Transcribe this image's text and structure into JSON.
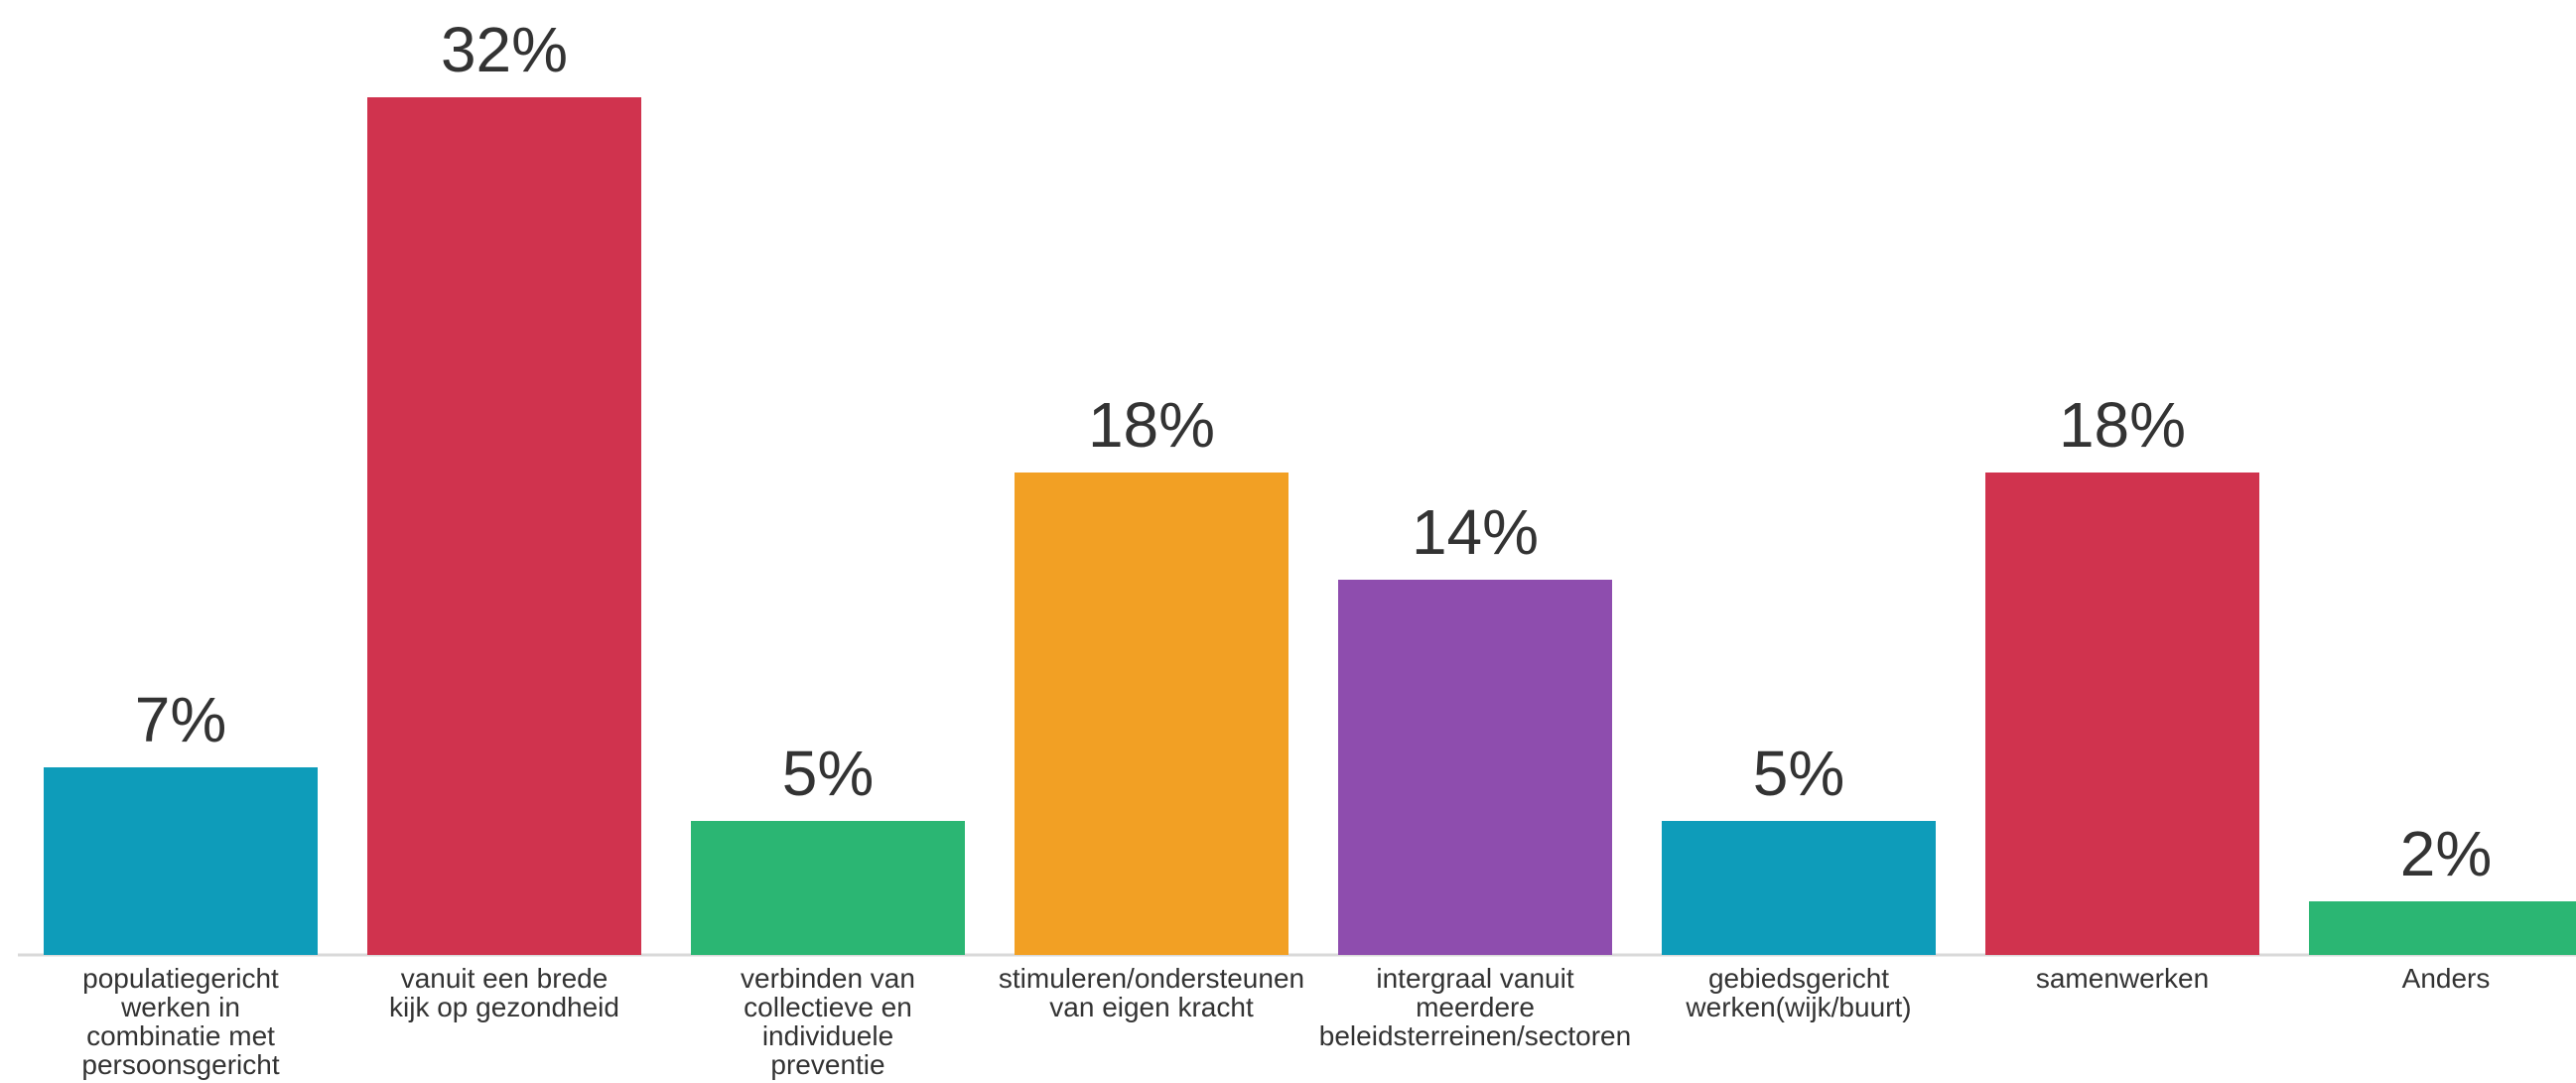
{
  "chart_data": {
    "type": "bar",
    "categories": [
      [
        "populatiegericht",
        "werken in",
        "combinatie met",
        "persoonsgericht"
      ],
      [
        "vanuit een brede",
        "kijk op gezondheid"
      ],
      [
        "verbinden van",
        "collectieve en",
        "individuele",
        "preventie"
      ],
      [
        "stimuleren/ondersteunen",
        "van eigen kracht"
      ],
      [
        "intergraal vanuit",
        "meerdere",
        "beleidsterreinen/sectoren"
      ],
      [
        "gebiedsgericht",
        "werken(wijk/buurt)"
      ],
      [
        "samenwerken"
      ],
      [
        "Anders"
      ]
    ],
    "values": [
      7,
      32,
      5,
      18,
      14,
      5,
      18,
      2
    ],
    "value_labels": [
      "7%",
      "32%",
      "5%",
      "18%",
      "14%",
      "5%",
      "18%",
      "2%"
    ],
    "colors": [
      "#0E9CBA",
      "#D0334E",
      "#2BB673",
      "#F2A024",
      "#8E4DAE",
      "#0E9CBA",
      "#D0334E",
      "#2BB673"
    ],
    "ylim": [
      0,
      32
    ],
    "grid": false,
    "legend": "none"
  }
}
